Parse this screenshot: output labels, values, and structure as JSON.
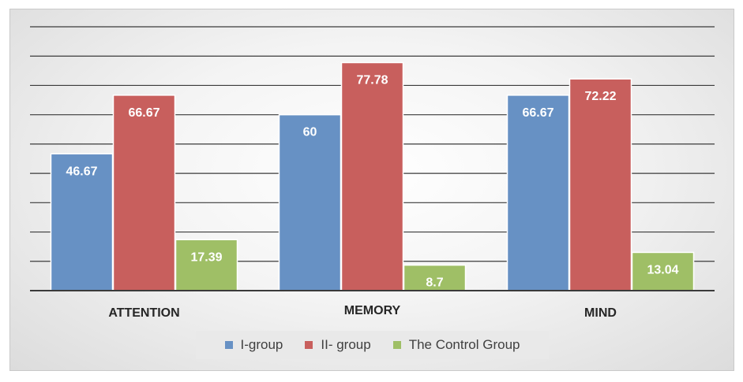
{
  "chart_data": {
    "type": "bar",
    "title": "",
    "xlabel": "",
    "ylabel": "",
    "categories": [
      "ATTENTION",
      "MEMORY",
      "MIND"
    ],
    "series": [
      {
        "name": "I-group",
        "color": "#6791c4",
        "values": [
          46.67,
          60,
          66.67
        ]
      },
      {
        "name": "II- group",
        "color": "#c85f5d",
        "values": [
          66.67,
          77.78,
          72.22
        ]
      },
      {
        "name": "The Control Group",
        "color": "#9fbf66",
        "values": [
          17.39,
          8.7,
          13.04
        ]
      }
    ],
    "ylim": [
      0,
      90
    ],
    "grid": true,
    "legend_position": "bottom",
    "data_labels": true,
    "gridline_color": "#3a3a3a",
    "axis_color": "#3a3a3a"
  }
}
